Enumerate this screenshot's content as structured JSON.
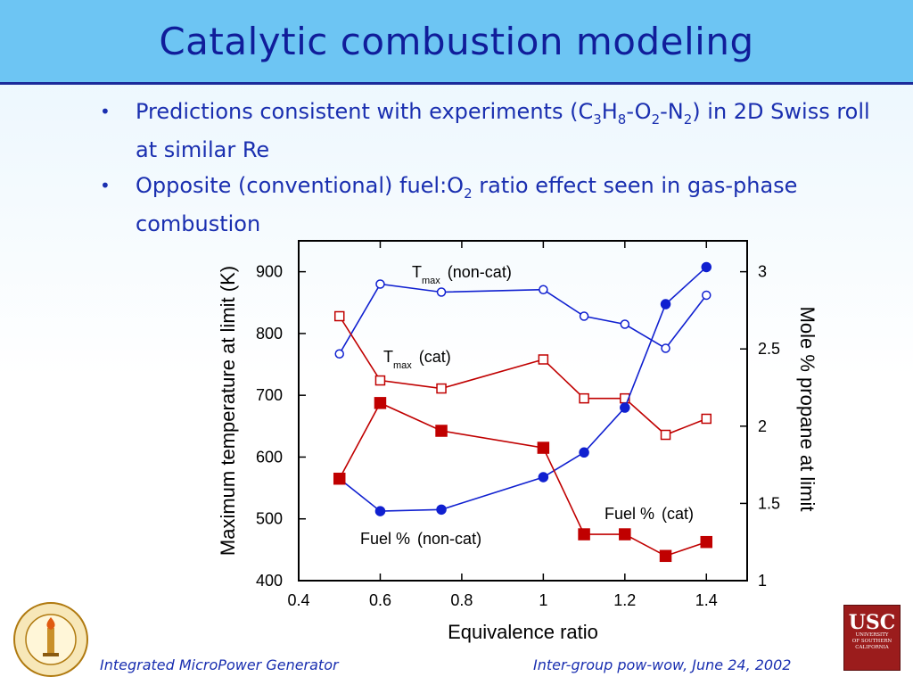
{
  "slide": {
    "title": "Catalytic combustion modeling",
    "bullet1_a": "Predictions consistent with experiments (C",
    "bullet1_sub1": "3",
    "bullet1_b": "H",
    "bullet1_sub2": "8",
    "bullet1_c": "-O",
    "bullet1_sub3": "2",
    "bullet1_d": "-N",
    "bullet1_sub4": "2",
    "bullet1_e": ") in 2D Swiss roll at similar Re",
    "bullet2_a": "Opposite (conventional) fuel:O",
    "bullet2_sub1": "2",
    "bullet2_b": " ratio effect seen in gas-phase combustion",
    "footer_left": "Integrated MicroPower Generator",
    "footer_right": "Inter-group pow-wow, June 24, 2002",
    "usc_logo_text": "USC",
    "usc_logo_sub": [
      "UNIVERSITY",
      "OF SOUTHERN",
      "CALIFORNIA"
    ],
    "caltech_logo_text": "CALIFORNIA INSTITUTE OF TECHNOLOGY",
    "caltech_logo_year": "1891"
  },
  "colors": {
    "title_bar": "#6dc5f3",
    "title_text": "#101d9a",
    "blue_series": "#1020d0",
    "red_series": "#c00000"
  },
  "chart_data": {
    "type": "line",
    "xlabel": "Equivalence ratio",
    "ylabel_left": "Maximum temperature at limit (K)",
    "ylabel_right": "Mole % propane at limit",
    "xlim": [
      0.4,
      1.5
    ],
    "ylim_left": [
      400,
      950
    ],
    "ylim_right": [
      1,
      3.2
    ],
    "x_ticks": [
      "0.4",
      "0.6",
      "0.8",
      "1",
      "1.2",
      "1.4"
    ],
    "y_left_ticks": [
      "400",
      "500",
      "600",
      "700",
      "800",
      "900"
    ],
    "y_right_ticks": [
      "1",
      "1.5",
      "2",
      "2.5",
      "3"
    ],
    "x_tick_values": [
      0.4,
      0.6,
      0.8,
      1,
      1.2,
      1.4
    ],
    "y_left_tick_values": [
      400,
      500,
      600,
      700,
      800,
      900
    ],
    "y_right_tick_values": [
      1,
      1.5,
      2,
      2.5,
      3
    ],
    "series": [
      {
        "label_main": "T",
        "label_sub": "max",
        "label_rest": "(non-cat)",
        "axis": "left",
        "color": "#1020d0",
        "marker": "circle-open",
        "x": [
          0.5,
          0.6,
          0.75,
          1.0,
          1.1,
          1.2,
          1.3,
          1.4
        ],
        "y": [
          767,
          880,
          867,
          871,
          828,
          815,
          776,
          862
        ]
      },
      {
        "label_main": "T",
        "label_sub": "max",
        "label_rest": "(cat)",
        "axis": "left",
        "color": "#c00000",
        "marker": "square-open",
        "x": [
          0.5,
          0.6,
          0.75,
          1.0,
          1.1,
          1.2,
          1.3,
          1.4
        ],
        "y": [
          828,
          724,
          711,
          758,
          695,
          695,
          636,
          662
        ]
      },
      {
        "label_main": "Fuel %",
        "label_sub": "",
        "label_rest": "(non-cat)",
        "axis": "right",
        "color": "#1020d0",
        "marker": "circle-filled",
        "x": [
          0.5,
          0.6,
          0.75,
          1.0,
          1.1,
          1.2,
          1.3,
          1.4
        ],
        "y": [
          1.66,
          1.45,
          1.46,
          1.67,
          1.83,
          2.12,
          2.79,
          3.03
        ]
      },
      {
        "label_main": "Fuel %",
        "label_sub": "",
        "label_rest": "(cat)",
        "axis": "right",
        "color": "#c00000",
        "marker": "square-filled",
        "x": [
          0.5,
          0.6,
          0.75,
          1.0,
          1.1,
          1.2,
          1.3,
          1.4
        ],
        "y": [
          1.66,
          2.15,
          1.97,
          1.86,
          1.3,
          1.3,
          1.16,
          1.25
        ]
      }
    ]
  }
}
